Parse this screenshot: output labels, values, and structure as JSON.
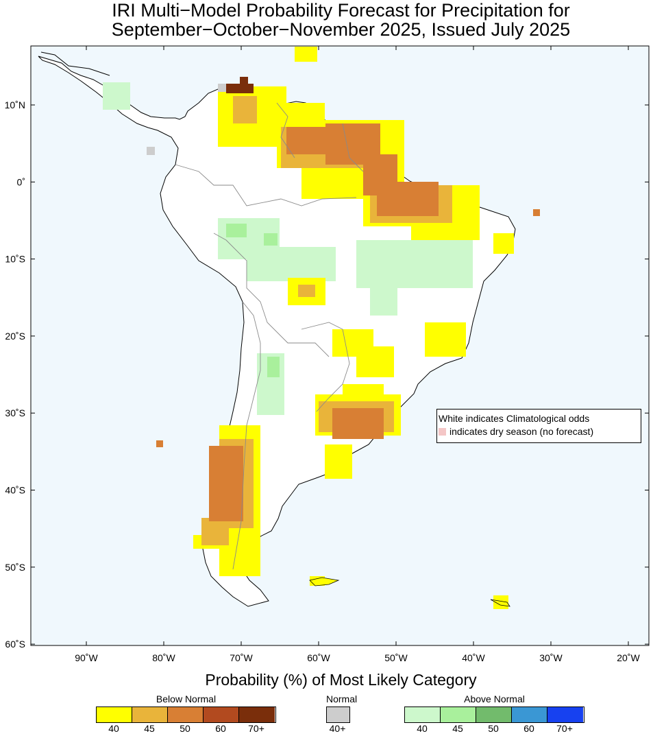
{
  "title": {
    "line1": "IRI Multi−Model Probability Forecast for Precipitation for",
    "line2": "September−October−November 2025, Issued July 2025"
  },
  "map": {
    "lon_labels": [
      "90˚W",
      "80˚W",
      "70˚W",
      "60˚W",
      "50˚W",
      "40˚W",
      "30˚W",
      "20˚W"
    ],
    "lat_labels": [
      "10˚N",
      "0˚",
      "10˚S",
      "20˚S",
      "30˚S",
      "40˚S",
      "50˚S",
      "60˚S"
    ],
    "ocean_color": "#f0f8fd",
    "land_color": "#ffffff"
  },
  "note": {
    "line1": "White indicates Climatological odds",
    "line2": "indicates dry season (no forecast)"
  },
  "legend": {
    "title": "Probability (%) of Most Likely Category",
    "below": {
      "label": "Below Normal",
      "ticks": [
        "40",
        "45",
        "50",
        "60",
        "70+"
      ],
      "colors": [
        "#ffff00",
        "#e9b43a",
        "#d87f34",
        "#b24a1f",
        "#7a2e0b"
      ]
    },
    "normal": {
      "label": "Normal",
      "ticks": [
        "40+"
      ],
      "colors": [
        "#cdcdcd"
      ]
    },
    "above": {
      "label": "Above Normal",
      "ticks": [
        "40",
        "45",
        "50",
        "60",
        "70+"
      ],
      "colors": [
        "#cdf8cc",
        "#a9f09c",
        "#72bb6c",
        "#3a97d4",
        "#1741f0"
      ]
    }
  }
}
